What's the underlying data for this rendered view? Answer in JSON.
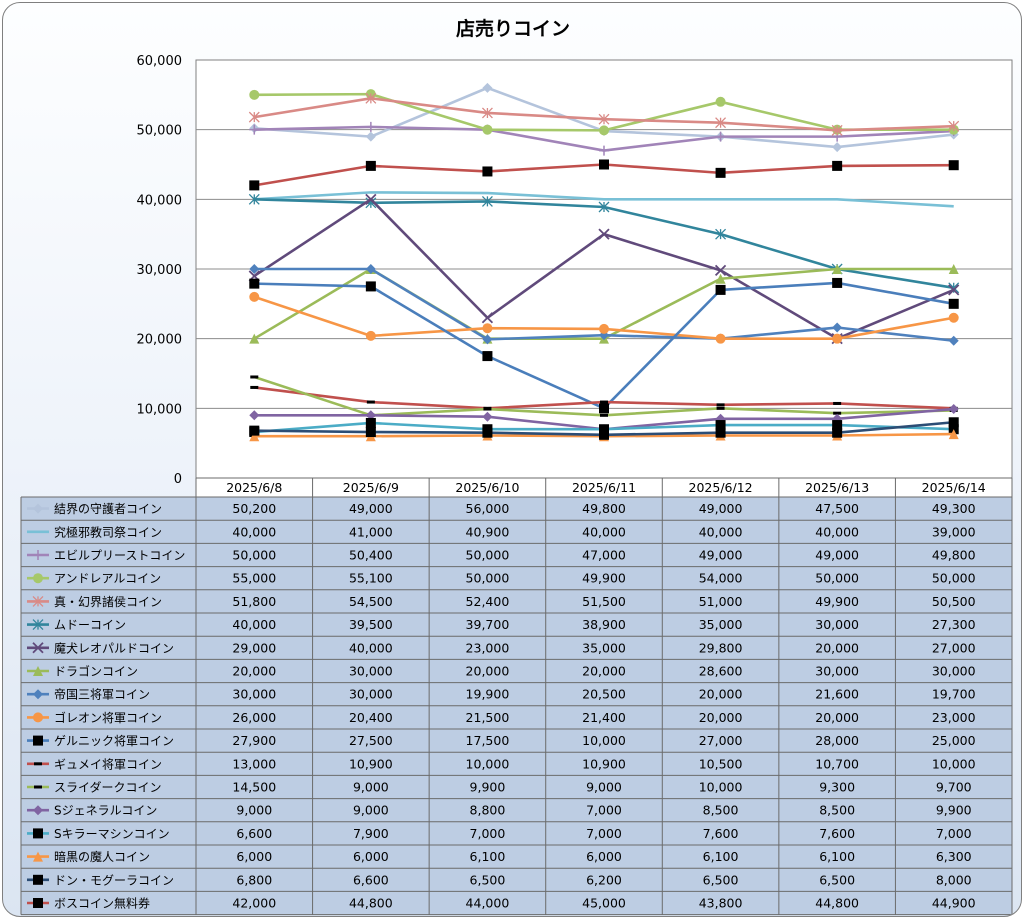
{
  "chart_data": {
    "type": "line",
    "title": "店売りコイン",
    "ylim": [
      0,
      60000
    ],
    "y_ticks": [
      "0",
      "10,000",
      "20,000",
      "30,000",
      "40,000",
      "50,000",
      "60,000"
    ],
    "grid": true,
    "legend": "data-table",
    "categories": [
      "2025/6/8",
      "2025/6/9",
      "2025/6/10",
      "2025/6/11",
      "2025/6/12",
      "2025/6/13",
      "2025/6/14"
    ],
    "series": [
      {
        "name": "結界の守護者コイン",
        "color": "#b4c4dc",
        "marker": "diamond",
        "values": [
          50200,
          49000,
          56000,
          49800,
          49000,
          47500,
          49300
        ],
        "labels": [
          "50,200",
          "49,000",
          "56,000",
          "49,800",
          "49,000",
          "47,500",
          "49,300"
        ]
      },
      {
        "name": "究極邪教司祭コイン",
        "color": "#79c0d6",
        "marker": "none",
        "values": [
          40000,
          41000,
          40900,
          40000,
          40000,
          40000,
          39000
        ],
        "labels": [
          "40,000",
          "41,000",
          "40,900",
          "40,000",
          "40,000",
          "40,000",
          "39,000"
        ]
      },
      {
        "name": "エビルプリーストコイン",
        "color": "#a184b8",
        "marker": "plus",
        "values": [
          50000,
          50400,
          50000,
          47000,
          49000,
          49000,
          49800
        ],
        "labels": [
          "50,000",
          "50,400",
          "50,000",
          "47,000",
          "49,000",
          "49,000",
          "49,800"
        ]
      },
      {
        "name": "アンドレアルコイン",
        "color": "#a6c86a",
        "marker": "circle",
        "values": [
          55000,
          55100,
          50000,
          49900,
          54000,
          50000,
          50000
        ],
        "labels": [
          "55,000",
          "55,100",
          "50,000",
          "49,900",
          "54,000",
          "50,000",
          "50,000"
        ]
      },
      {
        "name": "真・幻界諸侯コイン",
        "color": "#d98a86",
        "marker": "star",
        "values": [
          51800,
          54500,
          52400,
          51500,
          51000,
          49900,
          50500
        ],
        "labels": [
          "51,800",
          "54,500",
          "52,400",
          "51,500",
          "51,000",
          "49,900",
          "50,500"
        ]
      },
      {
        "name": "ムドーコイン",
        "color": "#31859c",
        "marker": "star",
        "values": [
          40000,
          39500,
          39700,
          38900,
          35000,
          30000,
          27300
        ],
        "labels": [
          "40,000",
          "39,500",
          "39,700",
          "38,900",
          "35,000",
          "30,000",
          "27,300"
        ]
      },
      {
        "name": "魔犬レオパルドコイン",
        "color": "#604a7b",
        "marker": "x",
        "values": [
          29000,
          40000,
          23000,
          35000,
          29800,
          20000,
          27000
        ],
        "labels": [
          "29,000",
          "40,000",
          "23,000",
          "35,000",
          "29,800",
          "20,000",
          "27,000"
        ]
      },
      {
        "name": "ドラゴンコイン",
        "color": "#9bbb59",
        "marker": "triangle",
        "values": [
          20000,
          30000,
          20000,
          20000,
          28600,
          30000,
          30000
        ],
        "labels": [
          "20,000",
          "30,000",
          "20,000",
          "20,000",
          "28,600",
          "30,000",
          "30,000"
        ]
      },
      {
        "name": "帝国三将軍コイン",
        "color": "#4f81bd",
        "marker": "diamond",
        "values": [
          30000,
          30000,
          19900,
          20500,
          20000,
          21600,
          19700
        ],
        "labels": [
          "30,000",
          "30,000",
          "19,900",
          "20,500",
          "20,000",
          "21,600",
          "19,700"
        ]
      },
      {
        "name": "ゴレオン将軍コイン",
        "color": "#f79646",
        "marker": "circle",
        "values": [
          26000,
          20400,
          21500,
          21400,
          20000,
          20000,
          23000
        ],
        "labels": [
          "26,000",
          "20,400",
          "21,500",
          "21,400",
          "20,000",
          "20,000",
          "23,000"
        ]
      },
      {
        "name": "ゲルニック将軍コイン",
        "color": "#4a7ebb",
        "marker": "square",
        "values": [
          27900,
          27500,
          17500,
          10000,
          27000,
          28000,
          25000
        ],
        "labels": [
          "27,900",
          "27,500",
          "17,500",
          "10,000",
          "27,000",
          "28,000",
          "25,000"
        ]
      },
      {
        "name": "ギュメイ将軍コイン",
        "color": "#c0504d",
        "marker": "dash",
        "values": [
          13000,
          10900,
          10000,
          10900,
          10500,
          10700,
          10000
        ],
        "labels": [
          "13,000",
          "10,900",
          "10,000",
          "10,900",
          "10,500",
          "10,700",
          "10,000"
        ]
      },
      {
        "name": "スライダークコイン",
        "color": "#9bbb59",
        "marker": "dash",
        "values": [
          14500,
          9000,
          9900,
          9000,
          10000,
          9300,
          9700
        ],
        "labels": [
          "14,500",
          "9,000",
          "9,900",
          "9,000",
          "10,000",
          "9,300",
          "9,700"
        ]
      },
      {
        "name": "Sジェネラルコイン",
        "color": "#8064a2",
        "marker": "diamond",
        "values": [
          9000,
          9000,
          8800,
          7000,
          8500,
          8500,
          9900
        ],
        "labels": [
          "9,000",
          "9,000",
          "8,800",
          "7,000",
          "8,500",
          "8,500",
          "9,900"
        ]
      },
      {
        "name": "Sキラーマシンコイン",
        "color": "#4bacc6",
        "marker": "square",
        "values": [
          6600,
          7900,
          7000,
          7000,
          7600,
          7600,
          7000
        ],
        "labels": [
          "6,600",
          "7,900",
          "7,000",
          "7,000",
          "7,600",
          "7,600",
          "7,000"
        ]
      },
      {
        "name": "暗黒の魔人コイン",
        "color": "#f79646",
        "marker": "triangle",
        "values": [
          6000,
          6000,
          6100,
          6000,
          6100,
          6100,
          6300
        ],
        "labels": [
          "6,000",
          "6,000",
          "6,100",
          "6,000",
          "6,100",
          "6,100",
          "6,300"
        ]
      },
      {
        "name": "ドン・モグーラコイン",
        "color": "#2c4d75",
        "marker": "square",
        "values": [
          6800,
          6600,
          6500,
          6200,
          6500,
          6500,
          8000
        ],
        "labels": [
          "6,800",
          "6,600",
          "6,500",
          "6,200",
          "6,500",
          "6,500",
          "8,000"
        ]
      },
      {
        "name": "ボスコイン無料券",
        "color": "#c0504d",
        "marker": "square",
        "values": [
          42000,
          44800,
          44000,
          45000,
          43800,
          44800,
          44900
        ],
        "labels": [
          "42,000",
          "44,800",
          "44,000",
          "45,000",
          "43,800",
          "44,800",
          "44,900"
        ]
      }
    ]
  }
}
